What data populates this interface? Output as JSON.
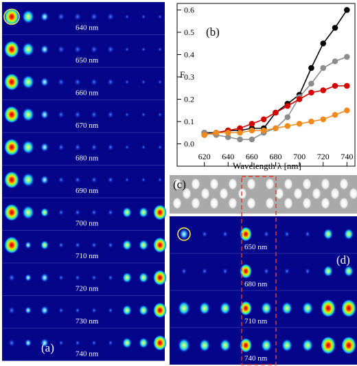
{
  "panel_labels": {
    "a": "(a)",
    "b": "(b)",
    "c": "(c)",
    "d": "(d)"
  },
  "panel_a": {
    "wavelength_labels": [
      "640 nm",
      "650 nm",
      "660 nm",
      "670 nm",
      "680 nm",
      "690 nm",
      "700 nm",
      "710 nm",
      "720 nm",
      "730 nm",
      "740 nm"
    ]
  },
  "panel_d": {
    "wavelength_labels": [
      "650 nm",
      "680 nm",
      "710 nm",
      "740 nm"
    ]
  },
  "colors": {
    "series_black": "#000000",
    "series_gray": "#8c8c8c",
    "series_red": "#d40000",
    "series_orange": "#f08a1c",
    "field_background": "#05058a",
    "highlight_circle": "#f2e24a",
    "dashed_box": "#e03a2a"
  },
  "chart_data": {
    "type": "line",
    "xlabel": "Wavelength λ [nm]",
    "ylabel": "F",
    "xlim": [
      615,
      745
    ],
    "ylim": [
      -0.02,
      0.62
    ],
    "x_ticks": [
      620,
      640,
      660,
      680,
      700,
      720,
      740
    ],
    "y_ticks": [
      0.0,
      0.1,
      0.2,
      0.3,
      0.4,
      0.5,
      0.6
    ],
    "y_tick_labels": [
      "0.0",
      "0.1",
      "0.2",
      "0.3",
      "0.4",
      "0.5",
      "0.6"
    ],
    "grid": false,
    "legend": "none",
    "series": [
      {
        "color_key": "series_black",
        "x": [
          620,
          630,
          640,
          650,
          660,
          670,
          680,
          690,
          700,
          710,
          720,
          730,
          740
        ],
        "y": [
          0.05,
          0.05,
          0.06,
          0.06,
          0.07,
          0.07,
          0.14,
          0.18,
          0.22,
          0.34,
          0.45,
          0.52,
          0.6
        ]
      },
      {
        "color_key": "series_gray",
        "x": [
          620,
          630,
          640,
          650,
          660,
          670,
          680,
          690,
          700,
          710,
          720,
          730,
          740
        ],
        "y": [
          0.05,
          0.04,
          0.03,
          0.02,
          0.02,
          0.05,
          0.07,
          0.12,
          0.21,
          0.27,
          0.34,
          0.37,
          0.39
        ]
      },
      {
        "color_key": "series_red",
        "x": [
          620,
          630,
          640,
          650,
          660,
          670,
          680,
          690,
          700,
          710,
          720,
          730,
          740
        ],
        "y": [
          0.04,
          0.05,
          0.06,
          0.07,
          0.09,
          0.11,
          0.14,
          0.17,
          0.2,
          0.23,
          0.24,
          0.26,
          0.26
        ]
      },
      {
        "color_key": "series_orange",
        "x": [
          620,
          630,
          640,
          650,
          660,
          670,
          680,
          690,
          700,
          710,
          720,
          730,
          740
        ],
        "y": [
          0.04,
          0.05,
          0.05,
          0.05,
          0.06,
          0.06,
          0.07,
          0.08,
          0.09,
          0.1,
          0.11,
          0.13,
          0.15
        ]
      }
    ]
  }
}
